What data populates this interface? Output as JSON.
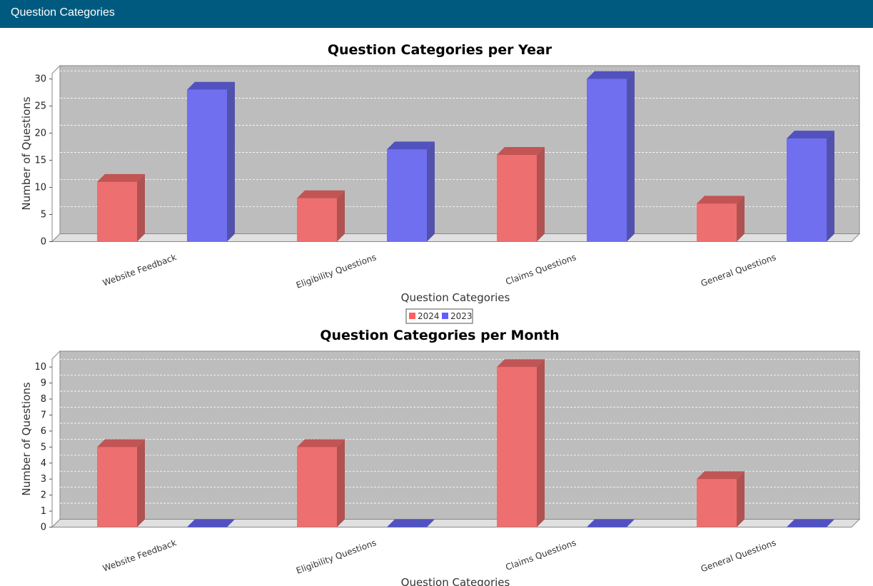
{
  "window": {
    "title": "Question Categories"
  },
  "legend": [
    {
      "name": "2024",
      "color": "#ff5e5e"
    },
    {
      "name": "2023",
      "color": "#5e5eff"
    }
  ],
  "chart_data": [
    {
      "type": "bar",
      "title": "Question Categories per Year",
      "xlabel": "Question Categories",
      "ylabel": "Number of Questions",
      "categories": [
        "Website Feedback",
        "Eligibility Questions",
        "Claims Questions",
        "General Questions"
      ],
      "series": [
        {
          "name": "2024",
          "values": [
            11,
            8,
            16,
            7
          ]
        },
        {
          "name": "2023",
          "values": [
            28,
            17,
            30,
            19
          ]
        }
      ],
      "ylim": [
        0,
        31
      ],
      "yticks": [
        0,
        5,
        10,
        15,
        20,
        25,
        30
      ],
      "grid": true,
      "legend_position": "bottom"
    },
    {
      "type": "bar",
      "title": "Question Categories per Month",
      "xlabel": "Question Categories",
      "ylabel": "Number of Questions",
      "categories": [
        "Website Feedback",
        "Eligibility Questions",
        "Claims Questions",
        "General Questions"
      ],
      "series": [
        {
          "name": "2024",
          "values": [
            5,
            5,
            10,
            3
          ]
        },
        {
          "name": "2023",
          "values": [
            0,
            0,
            0,
            0
          ]
        }
      ],
      "ylim": [
        0,
        10.5
      ],
      "yticks": [
        0,
        1,
        2,
        3,
        4,
        5,
        6,
        7,
        8,
        9,
        10
      ],
      "grid": true
    }
  ]
}
